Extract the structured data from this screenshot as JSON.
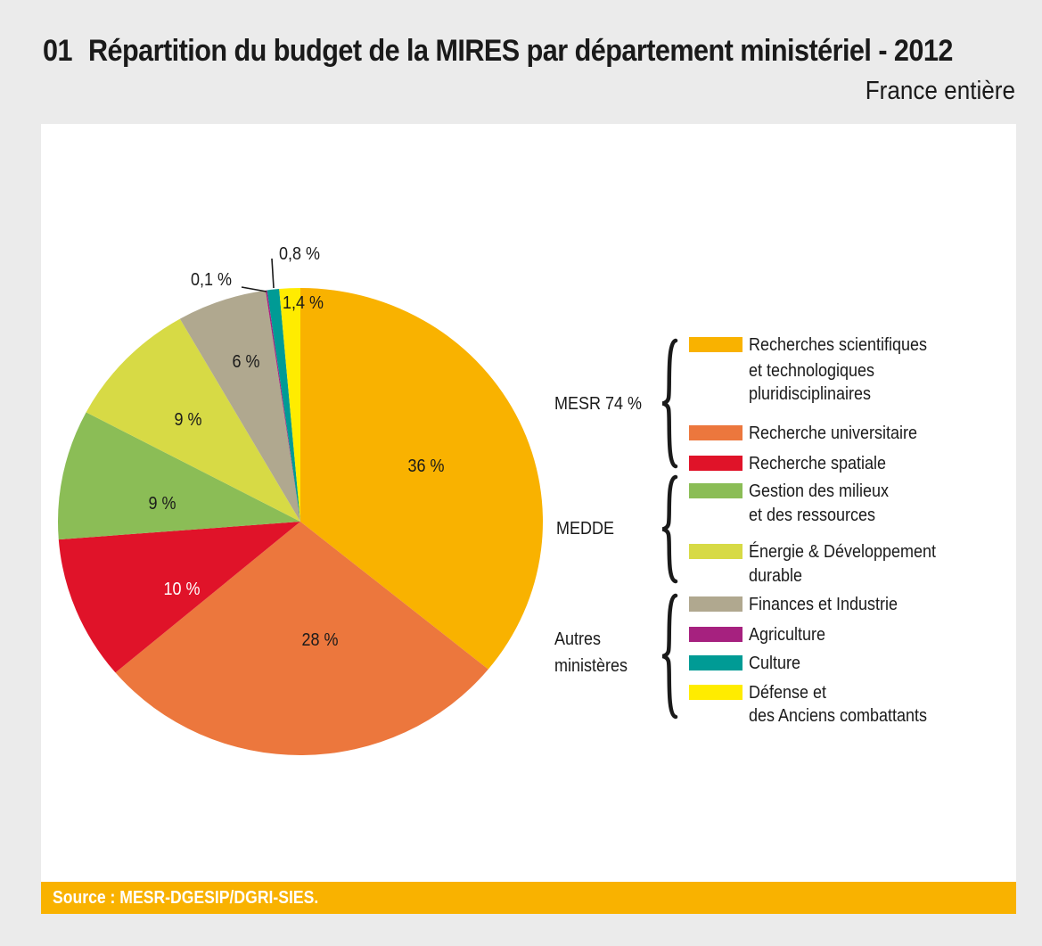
{
  "header": {
    "number": "01",
    "title": "Répartition du budget de la MIRES par département ministériel - 2012",
    "subtitle": "France entière"
  },
  "source": "Source : MESR-DGESIP/DGRI-SIES.",
  "chart_data": {
    "type": "pie",
    "title": "Répartition du budget de la MIRES par département ministériel - 2012",
    "subtitle": "France entière",
    "start": "12 o'clock, clockwise",
    "slices": [
      {
        "label": "Recherches scientifiques et technologiques pluridisciplinaires",
        "value": 36,
        "display": "36 %",
        "color": "#f9b200",
        "label_color": "#1a1a1a",
        "group": "MESR"
      },
      {
        "label": "Recherche universitaire",
        "value": 28,
        "display": "28 %",
        "color": "#ec773d",
        "label_color": "#1a1a1a",
        "group": "MESR"
      },
      {
        "label": "Recherche spatiale",
        "value": 10,
        "display": "10 %",
        "color": "#e01329",
        "label_color": "#ffffff",
        "group": "MESR"
      },
      {
        "label": "Gestion des milieux et des ressources",
        "value": 9,
        "display": "9 %",
        "color": "#8bbd56",
        "label_color": "#1a1a1a",
        "group": "MEDDE"
      },
      {
        "label": "Énergie & Développement durable",
        "value": 9,
        "display": "9 %",
        "color": "#d7da45",
        "label_color": "#1a1a1a",
        "group": "MEDDE"
      },
      {
        "label": "Finances et Industrie",
        "value": 6,
        "display": "6 %",
        "color": "#b0a88f",
        "label_color": "#1a1a1a",
        "group": "Autres ministères"
      },
      {
        "label": "Agriculture",
        "value": 0.1,
        "display": "0,1 %",
        "color": "#a6217f",
        "label_color": "#1a1a1a",
        "group": "Autres ministères",
        "callout": true
      },
      {
        "label": "Culture",
        "value": 0.8,
        "display": "0,8 %",
        "color": "#009b95",
        "label_color": "#1a1a1a",
        "group": "Autres ministères",
        "callout": true
      },
      {
        "label": "Défense et des Anciens combattants",
        "value": 1.4,
        "display": "1,4 %",
        "color": "#ffec00",
        "label_color": "#1a1a1a",
        "group": "Autres ministères"
      }
    ],
    "legend": {
      "placement": "right",
      "groups": [
        {
          "name": "MESR 74 %",
          "items": [
            {
              "lines": [
                "Recherches scientifiques",
                "et technologiques",
                "pluridisciplinaires"
              ],
              "color": "#f9b200"
            },
            {
              "lines": [
                "Recherche universitaire"
              ],
              "color": "#ec773d"
            },
            {
              "lines": [
                "Recherche spatiale"
              ],
              "color": "#e01329"
            }
          ]
        },
        {
          "name": "MEDDE",
          "items": [
            {
              "lines": [
                "Gestion des milieux",
                " et des ressources"
              ],
              "color": "#8bbd56"
            },
            {
              "lines": [
                "Énergie & Développement",
                " durable"
              ],
              "color": "#d7da45"
            }
          ]
        },
        {
          "name_lines": [
            "Autres",
            "ministères"
          ],
          "name": "Autres ministères",
          "items": [
            {
              "lines": [
                "Finances et Industrie"
              ],
              "color": "#b0a88f"
            },
            {
              "lines": [
                "Agriculture"
              ],
              "color": "#a6217f"
            },
            {
              "lines": [
                "Culture"
              ],
              "color": "#009b95"
            },
            {
              "lines": [
                "Défense et",
                "des Anciens combattants"
              ],
              "color": "#ffec00"
            }
          ]
        }
      ]
    }
  }
}
